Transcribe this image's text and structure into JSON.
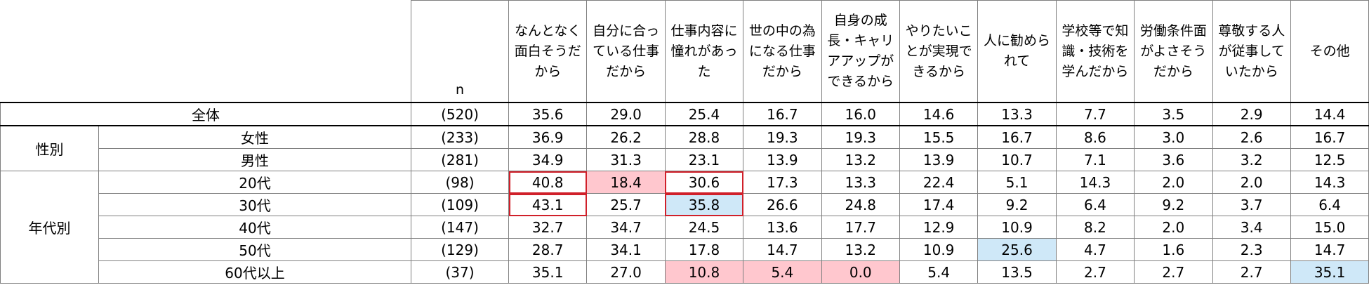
{
  "table": {
    "columns": [
      "n",
      "なんとなく面白そうだから",
      "自分に合っている仕事だから",
      "仕事内容に憧れがあった",
      "世の中の為になる仕事だから",
      "自身の成長・キャリアアップができるから",
      "やりたいことが実現できるから",
      "人に勧められて",
      "学校等で知識・技術を学んだから",
      "労働条件面がよさそうだから",
      "尊敬する人が従事していたから",
      "その他"
    ],
    "overall": {
      "label": "全体",
      "n": "(520)",
      "values": [
        "35.6",
        "29.0",
        "25.4",
        "16.7",
        "16.0",
        "14.6",
        "13.3",
        "7.7",
        "3.5",
        "2.9",
        "14.4"
      ]
    },
    "groups": [
      {
        "label": "性別",
        "rows": [
          {
            "label": "女性",
            "n": "(233)",
            "values": [
              "36.9",
              "26.2",
              "28.8",
              "19.3",
              "19.3",
              "15.5",
              "16.7",
              "8.6",
              "3.0",
              "2.6",
              "16.7"
            ]
          },
          {
            "label": "男性",
            "n": "(281)",
            "values": [
              "34.9",
              "31.3",
              "23.1",
              "13.9",
              "13.2",
              "13.9",
              "10.7",
              "7.1",
              "3.6",
              "3.2",
              "12.5"
            ]
          }
        ]
      },
      {
        "label": "年代別",
        "rows": [
          {
            "label": "20代",
            "n": "(98)",
            "values": [
              "40.8",
              "18.4",
              "30.6",
              "17.3",
              "13.3",
              "22.4",
              "5.1",
              "14.3",
              "2.0",
              "2.0",
              "14.3"
            ]
          },
          {
            "label": "30代",
            "n": "(109)",
            "values": [
              "43.1",
              "25.7",
              "35.8",
              "26.6",
              "24.8",
              "17.4",
              "9.2",
              "6.4",
              "9.2",
              "3.7",
              "6.4"
            ]
          },
          {
            "label": "40代",
            "n": "(147)",
            "values": [
              "32.7",
              "34.7",
              "24.5",
              "13.6",
              "17.7",
              "12.9",
              "10.9",
              "8.2",
              "2.0",
              "3.4",
              "15.0"
            ]
          },
          {
            "label": "50代",
            "n": "(129)",
            "values": [
              "28.7",
              "34.1",
              "17.8",
              "14.7",
              "13.2",
              "10.9",
              "25.6",
              "4.7",
              "1.6",
              "2.3",
              "14.7"
            ]
          },
          {
            "label": "60代以上",
            "n": "(37)",
            "values": [
              "35.1",
              "27.0",
              "10.8",
              "5.4",
              "0.0",
              "5.4",
              "13.5",
              "2.7",
              "2.7",
              "2.7",
              "35.1"
            ]
          }
        ]
      }
    ]
  }
}
